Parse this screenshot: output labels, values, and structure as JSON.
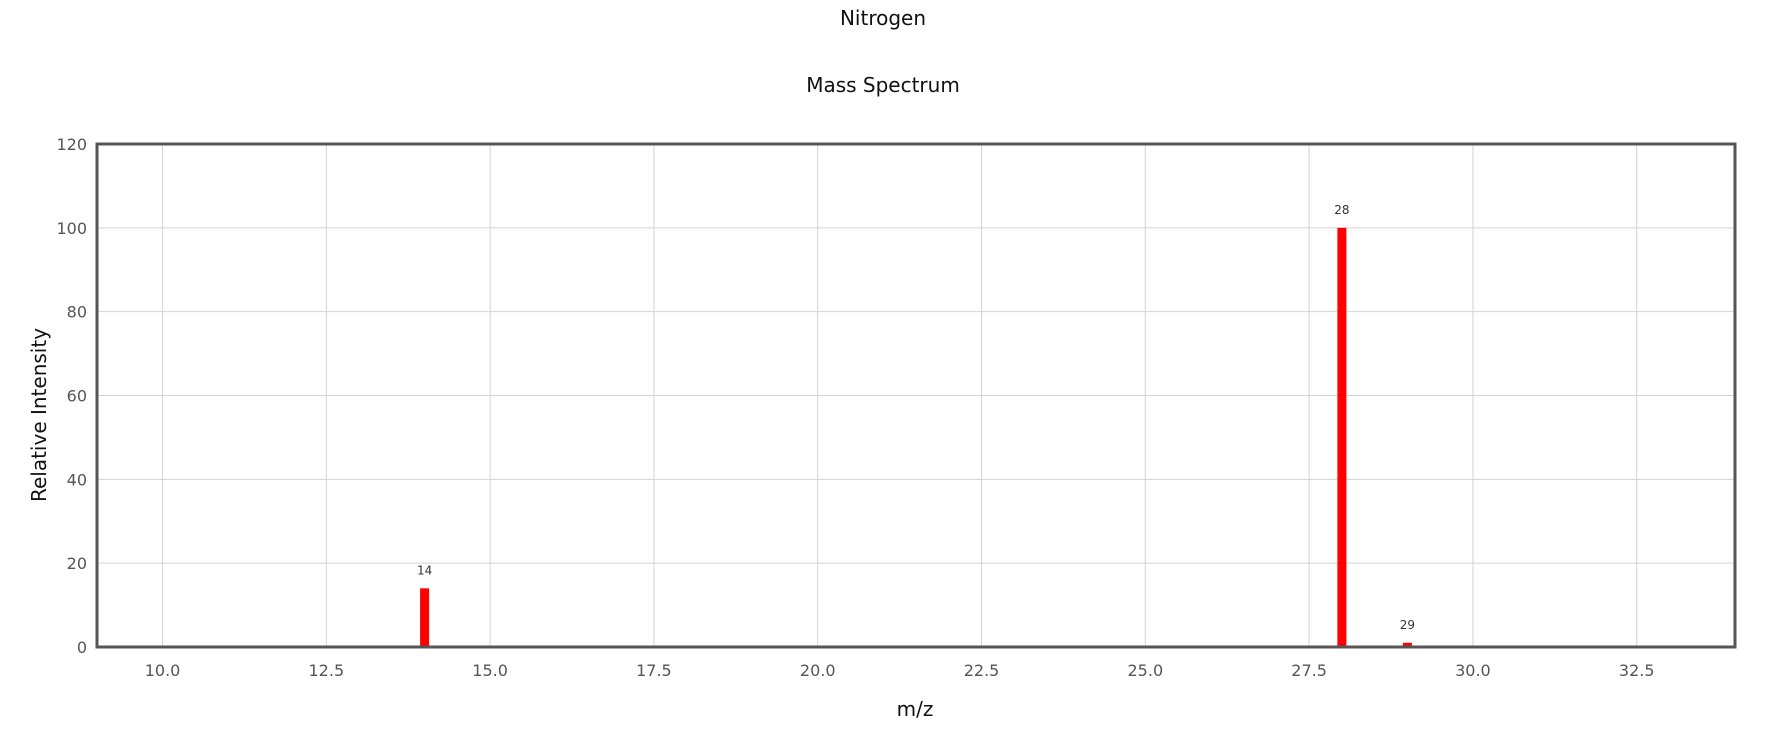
{
  "title": "Nitrogen",
  "subtitle": "Mass Spectrum",
  "colors": {
    "bar": "#ff0000",
    "grid": "#d3d3d3",
    "frame": "#555555"
  },
  "chart_data": {
    "type": "bar",
    "title": "Nitrogen",
    "subtitle": "Mass Spectrum",
    "xlabel": "m/z",
    "ylabel": "Relative Intensity",
    "xlim": [
      9.0,
      34.0
    ],
    "ylim": [
      0,
      120
    ],
    "x_ticks": [
      10.0,
      12.5,
      15.0,
      17.5,
      20.0,
      22.5,
      25.0,
      27.5,
      30.0,
      32.5
    ],
    "x_tick_labels": [
      "10.0",
      "12.5",
      "15.0",
      "17.5",
      "20.0",
      "22.5",
      "25.0",
      "27.5",
      "30.0",
      "32.5"
    ],
    "y_ticks": [
      0,
      20,
      40,
      60,
      80,
      100,
      120
    ],
    "y_tick_labels": [
      "0",
      "20",
      "40",
      "60",
      "80",
      "100",
      "120"
    ],
    "grid": true,
    "legend": "none",
    "series": [
      {
        "x": [
          14,
          28,
          29
        ],
        "values": [
          14,
          100,
          1
        ],
        "labels": [
          "14",
          "28",
          "29"
        ]
      }
    ]
  }
}
